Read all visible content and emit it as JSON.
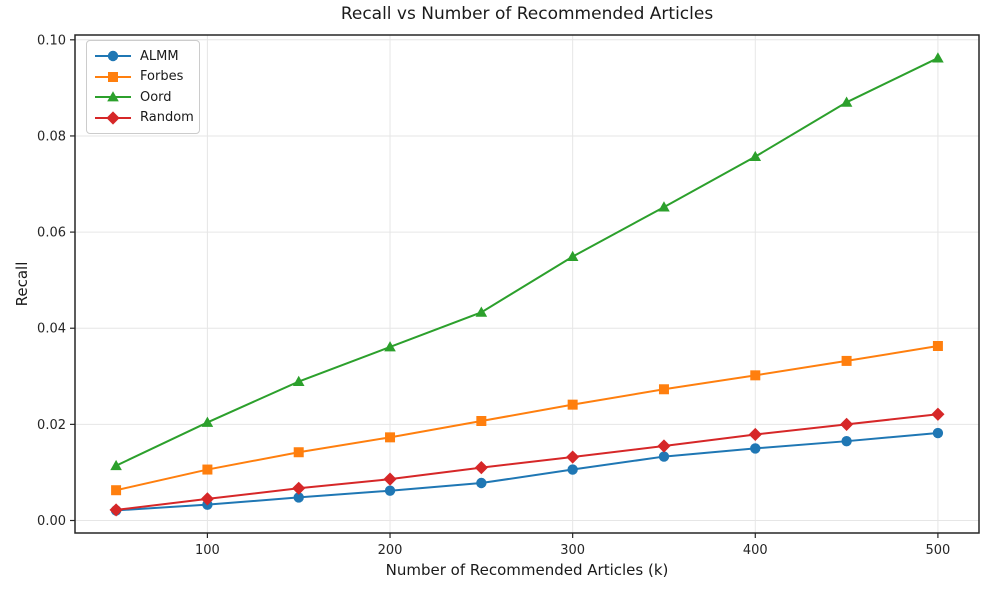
{
  "chart_data": {
    "type": "line",
    "title": "Recall vs Number of Recommended Articles",
    "xlabel": "Number of Recommended Articles (k)",
    "ylabel": "Recall",
    "x": [
      50,
      100,
      150,
      200,
      250,
      300,
      350,
      400,
      450,
      500
    ],
    "series": [
      {
        "name": "ALMM",
        "color": "#1f77b4",
        "marker": "circle",
        "values": [
          0.0021,
          0.0033,
          0.0048,
          0.0062,
          0.0078,
          0.0106,
          0.0133,
          0.015,
          0.0165,
          0.0182
        ]
      },
      {
        "name": "Forbes",
        "color": "#ff7f0e",
        "marker": "square",
        "values": [
          0.0063,
          0.0106,
          0.0142,
          0.0173,
          0.0207,
          0.0241,
          0.0273,
          0.0302,
          0.0332,
          0.0363
        ]
      },
      {
        "name": "Oord",
        "color": "#2ca02c",
        "marker": "triangle",
        "values": [
          0.0114,
          0.0204,
          0.0289,
          0.0361,
          0.0433,
          0.0549,
          0.0652,
          0.0757,
          0.087,
          0.0962
        ]
      },
      {
        "name": "Random",
        "color": "#d62728",
        "marker": "diamond",
        "values": [
          0.0022,
          0.0045,
          0.0067,
          0.0086,
          0.011,
          0.0132,
          0.0155,
          0.0179,
          0.02,
          0.0221
        ]
      }
    ],
    "xticks": {
      "values": [
        100,
        200,
        300,
        400,
        500
      ],
      "labels": [
        "100",
        "200",
        "300",
        "400",
        "500"
      ]
    },
    "yticks": {
      "values": [
        0.0,
        0.02,
        0.04,
        0.06,
        0.08,
        0.1
      ],
      "labels": [
        "0.00",
        "0.02",
        "0.04",
        "0.06",
        "0.08",
        "0.10"
      ]
    },
    "xlim": [
      27.5,
      522.5
    ],
    "ylim": [
      -0.0026,
      0.101
    ],
    "grid": true,
    "legend_position": "upper left"
  },
  "styles": {
    "background": "#ffffff",
    "grid_color": "#e6e6e6",
    "spine_color": "#262626",
    "tick_text_color": "#262626",
    "title_color": "#1a1a1a"
  }
}
